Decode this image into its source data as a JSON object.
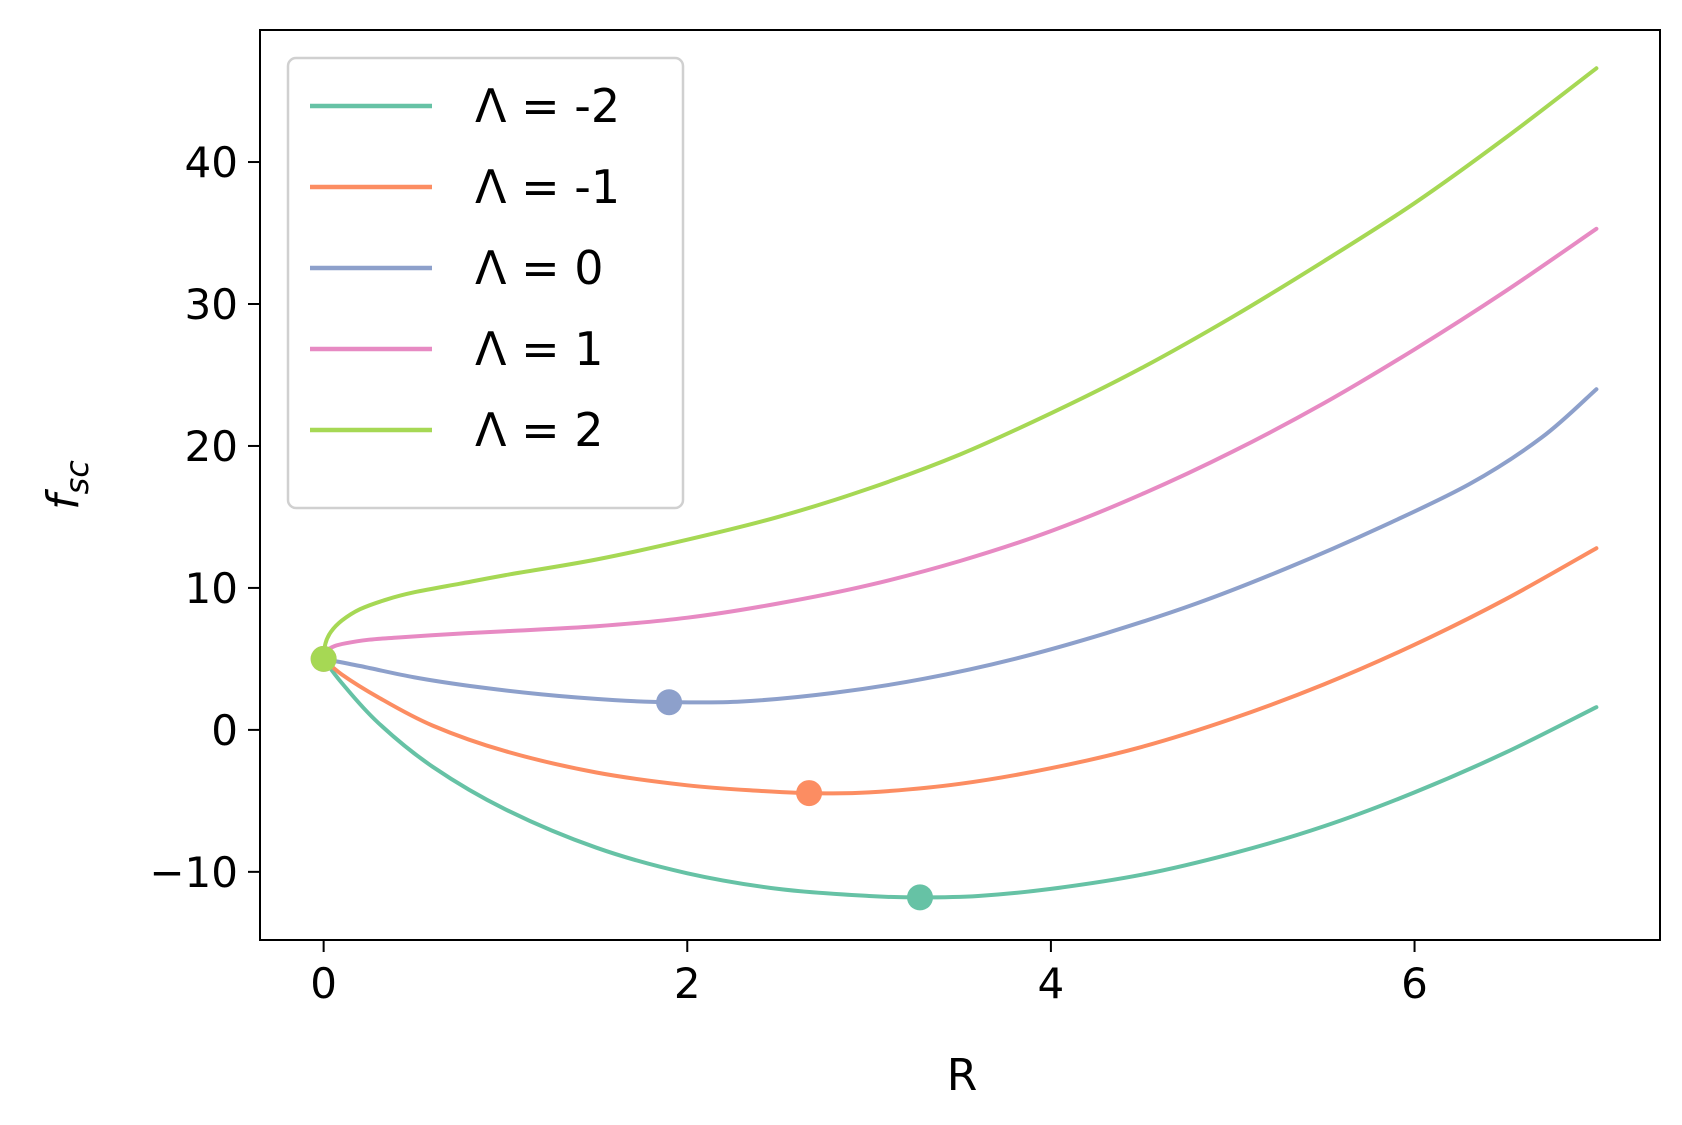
{
  "chart_data": {
    "type": "line",
    "xlabel": "R",
    "ylabel": {
      "main": "f",
      "sub": "sc"
    },
    "xlim": [
      -0.35,
      7.35
    ],
    "ylim": [
      -14.8,
      49.3
    ],
    "xticks": [
      0,
      2,
      4,
      6
    ],
    "yticks": [
      -10,
      0,
      10,
      20,
      30,
      40
    ],
    "xtick_labels": [
      "0",
      "2",
      "4",
      "6"
    ],
    "ytick_labels": [
      "−10",
      "0",
      "10",
      "20",
      "30",
      "40"
    ],
    "legend_position": "upper-left",
    "series": [
      {
        "name": "Λ = -2",
        "color": "#66c2a5",
        "points": [
          [
            0,
            5
          ],
          [
            0.1,
            3.3
          ],
          [
            0.3,
            0.5
          ],
          [
            0.6,
            -2.6
          ],
          [
            1,
            -5.6
          ],
          [
            1.5,
            -8.3
          ],
          [
            2,
            -10.1
          ],
          [
            2.5,
            -11.2
          ],
          [
            3,
            -11.7
          ],
          [
            3.28,
            -11.8
          ],
          [
            3.6,
            -11.7
          ],
          [
            4,
            -11.2
          ],
          [
            4.5,
            -10.2
          ],
          [
            5,
            -8.7
          ],
          [
            5.5,
            -6.8
          ],
          [
            6,
            -4.4
          ],
          [
            6.5,
            -1.6
          ],
          [
            7,
            1.6
          ]
        ],
        "marker": [
          3.28,
          -11.8
        ]
      },
      {
        "name": "Λ = -1",
        "color": "#fc8d62",
        "points": [
          [
            0,
            5
          ],
          [
            0.1,
            3.9
          ],
          [
            0.3,
            2.3
          ],
          [
            0.6,
            0.3
          ],
          [
            1,
            -1.5
          ],
          [
            1.5,
            -3
          ],
          [
            2,
            -3.9
          ],
          [
            2.4,
            -4.3
          ],
          [
            2.67,
            -4.45
          ],
          [
            3,
            -4.4
          ],
          [
            3.5,
            -3.8
          ],
          [
            4,
            -2.7
          ],
          [
            4.5,
            -1.2
          ],
          [
            5,
            0.8
          ],
          [
            5.5,
            3.2
          ],
          [
            6,
            6
          ],
          [
            6.5,
            9.2
          ],
          [
            7,
            12.8
          ]
        ],
        "marker": [
          2.67,
          -4.45
        ]
      },
      {
        "name": "Λ = 0",
        "color": "#8da0cb",
        "points": [
          [
            0,
            5
          ],
          [
            0.2,
            4.5
          ],
          [
            0.5,
            3.7
          ],
          [
            0.8,
            3.1
          ],
          [
            1.2,
            2.5
          ],
          [
            1.6,
            2.1
          ],
          [
            1.9,
            1.95
          ],
          [
            2.3,
            2.0
          ],
          [
            2.8,
            2.6
          ],
          [
            3.3,
            3.6
          ],
          [
            3.8,
            5
          ],
          [
            4.3,
            6.8
          ],
          [
            4.8,
            8.9
          ],
          [
            5.3,
            11.4
          ],
          [
            5.8,
            14.2
          ],
          [
            6.3,
            17.3
          ],
          [
            6.7,
            20.6
          ],
          [
            7,
            24
          ]
        ],
        "marker": [
          1.9,
          1.95
        ]
      },
      {
        "name": "Λ = 1",
        "color": "#e78ac3",
        "points": [
          [
            0,
            5
          ],
          [
            0.02,
            5.6
          ],
          [
            0.06,
            5.9
          ],
          [
            0.12,
            6.1
          ],
          [
            0.25,
            6.35
          ],
          [
            0.4,
            6.5
          ],
          [
            0.7,
            6.75
          ],
          [
            1,
            6.95
          ],
          [
            1.5,
            7.3
          ],
          [
            2,
            7.9
          ],
          [
            2.5,
            8.9
          ],
          [
            3,
            10.2
          ],
          [
            3.5,
            11.9
          ],
          [
            4,
            14
          ],
          [
            4.5,
            16.6
          ],
          [
            5,
            19.6
          ],
          [
            5.5,
            23
          ],
          [
            6,
            26.8
          ],
          [
            6.5,
            30.9
          ],
          [
            7,
            35.3
          ]
        ],
        "marker": [
          0,
          5
        ]
      },
      {
        "name": "Λ = 2",
        "color": "#a6d854",
        "points": [
          [
            0,
            5
          ],
          [
            0.01,
            6.1
          ],
          [
            0.04,
            6.9
          ],
          [
            0.1,
            7.7
          ],
          [
            0.2,
            8.5
          ],
          [
            0.35,
            9.2
          ],
          [
            0.5,
            9.7
          ],
          [
            0.75,
            10.3
          ],
          [
            1,
            10.9
          ],
          [
            1.5,
            12
          ],
          [
            2,
            13.4
          ],
          [
            2.5,
            15
          ],
          [
            3,
            17
          ],
          [
            3.5,
            19.4
          ],
          [
            4,
            22.3
          ],
          [
            4.5,
            25.5
          ],
          [
            5,
            29.1
          ],
          [
            5.5,
            33
          ],
          [
            6,
            37.1
          ],
          [
            6.5,
            41.7
          ],
          [
            7,
            46.6
          ]
        ],
        "marker": [
          0,
          5
        ]
      }
    ]
  }
}
